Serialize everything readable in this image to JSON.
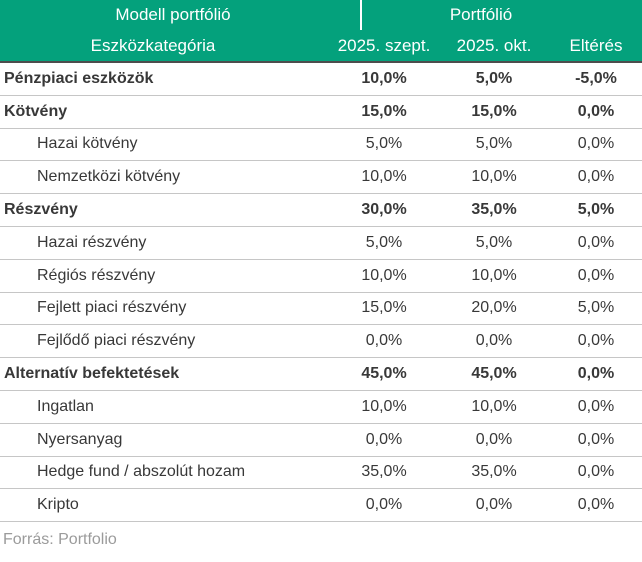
{
  "chart_data": {
    "type": "table",
    "header_groups": [
      {
        "label": "Modell portfólió"
      },
      {
        "label": "Portfólió"
      }
    ],
    "columns": [
      "Eszközkategória",
      "2025. szept.",
      "2025. okt.",
      "Eltérés"
    ],
    "rows": [
      {
        "label": "Pénzpiaci eszközök",
        "style": "group",
        "values": [
          "10,0%",
          "5,0%",
          "-5,0%"
        ]
      },
      {
        "label": "Kötvény",
        "style": "group",
        "values": [
          "15,0%",
          "15,0%",
          "0,0%"
        ]
      },
      {
        "label": "Hazai kötvény",
        "style": "sub",
        "values": [
          "5,0%",
          "5,0%",
          "0,0%"
        ]
      },
      {
        "label": "Nemzetközi kötvény",
        "style": "sub",
        "values": [
          "10,0%",
          "10,0%",
          "0,0%"
        ]
      },
      {
        "label": "Részvény",
        "style": "group",
        "values": [
          "30,0%",
          "35,0%",
          "5,0%"
        ]
      },
      {
        "label": "Hazai részvény",
        "style": "sub",
        "values": [
          "5,0%",
          "5,0%",
          "0,0%"
        ]
      },
      {
        "label": "Régiós részvény",
        "style": "sub",
        "values": [
          "10,0%",
          "10,0%",
          "0,0%"
        ]
      },
      {
        "label": "Fejlett piaci részvény",
        "style": "sub",
        "values": [
          "15,0%",
          "20,0%",
          "5,0%"
        ]
      },
      {
        "label": "Fejlődő piaci részvény",
        "style": "sub",
        "values": [
          "0,0%",
          "0,0%",
          "0,0%"
        ]
      },
      {
        "label": "Alternatív befektetések",
        "style": "group",
        "values": [
          "45,0%",
          "45,0%",
          "0,0%"
        ]
      },
      {
        "label": "Ingatlan",
        "style": "sub",
        "values": [
          "10,0%",
          "10,0%",
          "0,0%"
        ]
      },
      {
        "label": "Nyersanyag",
        "style": "sub",
        "values": [
          "0,0%",
          "0,0%",
          "0,0%"
        ]
      },
      {
        "label": "Hedge fund / abszolút hozam",
        "style": "sub",
        "values": [
          "35,0%",
          "35,0%",
          "0,0%"
        ]
      },
      {
        "label": "Kripto",
        "style": "sub",
        "values": [
          "0,0%",
          "0,0%",
          "0,0%"
        ]
      }
    ],
    "source": "Forrás: Portfolio"
  },
  "colors": {
    "header_bg": "#04a17c",
    "header_text": "#ffffff",
    "header_bottom_border": "#4d4d4d",
    "body_text": "#383838",
    "row_border": "#c6c6c6",
    "source_text": "#9b9b9b"
  }
}
